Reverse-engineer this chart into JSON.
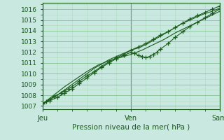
{
  "background_color": "#c8e8e0",
  "grid_color_major": "#7abf8a",
  "grid_color_minor": "#a0d4aa",
  "line_color": "#1a5c1a",
  "ylabel_values": [
    1007,
    1008,
    1009,
    1010,
    1011,
    1012,
    1013,
    1014,
    1015,
    1016
  ],
  "xlim": [
    0,
    48
  ],
  "ylim": [
    1006.7,
    1016.6
  ],
  "xlabel": "Pression niveau de la mer( hPa )",
  "xtick_positions": [
    0,
    24,
    48
  ],
  "xtick_labels": [
    "Jeu",
    "Ven",
    "Sam"
  ],
  "series": [
    {
      "x": [
        0,
        1,
        2,
        3,
        5,
        6,
        7,
        8,
        10,
        12,
        14,
        16,
        18,
        20,
        22,
        24,
        26,
        28,
        30,
        32,
        34,
        36,
        38,
        40,
        42,
        44,
        46,
        48
      ],
      "y": [
        1007.2,
        1007.4,
        1007.6,
        1007.9,
        1008.2,
        1008.4,
        1008.6,
        1008.8,
        1009.3,
        1009.8,
        1010.2,
        1010.7,
        1011.1,
        1011.5,
        1011.8,
        1012.2,
        1012.5,
        1012.8,
        1013.2,
        1013.6,
        1013.9,
        1014.3,
        1014.7,
        1015.1,
        1015.4,
        1015.7,
        1016.0,
        1016.3
      ],
      "has_markers": true
    },
    {
      "x": [
        0,
        3,
        6,
        9,
        12,
        15,
        18,
        21,
        24,
        27,
        30,
        33,
        36,
        39,
        42,
        45,
        48
      ],
      "y": [
        1007.2,
        1008.0,
        1008.8,
        1009.5,
        1010.2,
        1010.8,
        1011.2,
        1011.5,
        1011.8,
        1012.2,
        1012.7,
        1013.2,
        1013.8,
        1014.3,
        1014.8,
        1015.3,
        1015.8
      ],
      "has_markers": false
    },
    {
      "x": [
        0,
        2,
        4,
        6,
        8,
        10,
        12,
        14,
        16,
        18,
        20,
        22,
        24,
        25,
        26,
        27,
        28,
        29,
        30,
        31,
        32,
        34,
        36,
        38,
        40,
        42,
        44,
        46,
        48
      ],
      "y": [
        1007.2,
        1007.5,
        1007.8,
        1008.2,
        1008.6,
        1009.1,
        1009.6,
        1010.1,
        1010.6,
        1011.0,
        1011.4,
        1011.7,
        1012.0,
        1011.9,
        1011.7,
        1011.6,
        1011.5,
        1011.6,
        1011.8,
        1012.0,
        1012.3,
        1012.8,
        1013.4,
        1013.9,
        1014.4,
        1014.8,
        1015.2,
        1015.6,
        1016.0
      ],
      "has_markers": true
    },
    {
      "x": [
        0,
        2,
        4,
        6,
        8,
        10,
        12,
        14,
        16,
        18,
        20,
        22,
        24,
        26,
        28,
        30,
        32,
        34,
        36,
        38,
        40,
        42,
        44,
        46,
        48
      ],
      "y": [
        1007.2,
        1007.6,
        1008.0,
        1008.5,
        1009.0,
        1009.5,
        1010.0,
        1010.5,
        1010.9,
        1011.3,
        1011.6,
        1011.9,
        1012.2,
        1012.4,
        1012.7,
        1013.1,
        1013.5,
        1013.9,
        1014.3,
        1014.7,
        1015.0,
        1015.3,
        1015.6,
        1015.8,
        1016.1
      ],
      "has_markers": false
    }
  ]
}
